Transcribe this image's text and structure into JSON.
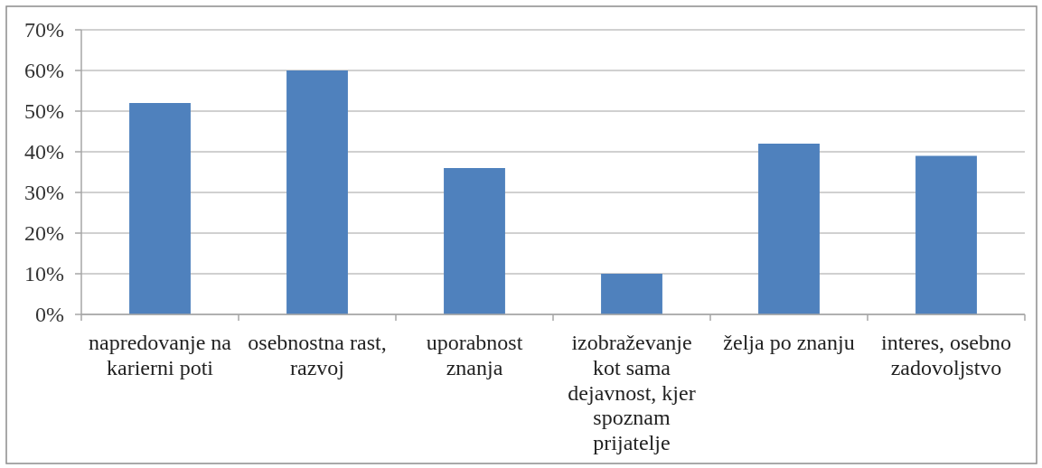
{
  "chart_data": {
    "type": "bar",
    "categories": [
      "napredovanje na karierni poti",
      "osebnostna rast, razvoj",
      "uporabnost znanja",
      "izobraževanje kot sama dejavnost, kjer spoznam prijatelje",
      "želja po znanju",
      "interes, osebno zadovoljstvo"
    ],
    "values": [
      52,
      60,
      36,
      10,
      42,
      39
    ],
    "color": "#4f81bd",
    "ylim": [
      0,
      70
    ],
    "yticks": [
      {
        "value": 0,
        "label": "0%"
      },
      {
        "value": 10,
        "label": "10%"
      },
      {
        "value": 20,
        "label": "20%"
      },
      {
        "value": 30,
        "label": "30%"
      },
      {
        "value": 40,
        "label": "40%"
      },
      {
        "value": 50,
        "label": "50%"
      },
      {
        "value": 60,
        "label": "60%"
      },
      {
        "value": 70,
        "label": "70%"
      }
    ],
    "grid": "y"
  }
}
